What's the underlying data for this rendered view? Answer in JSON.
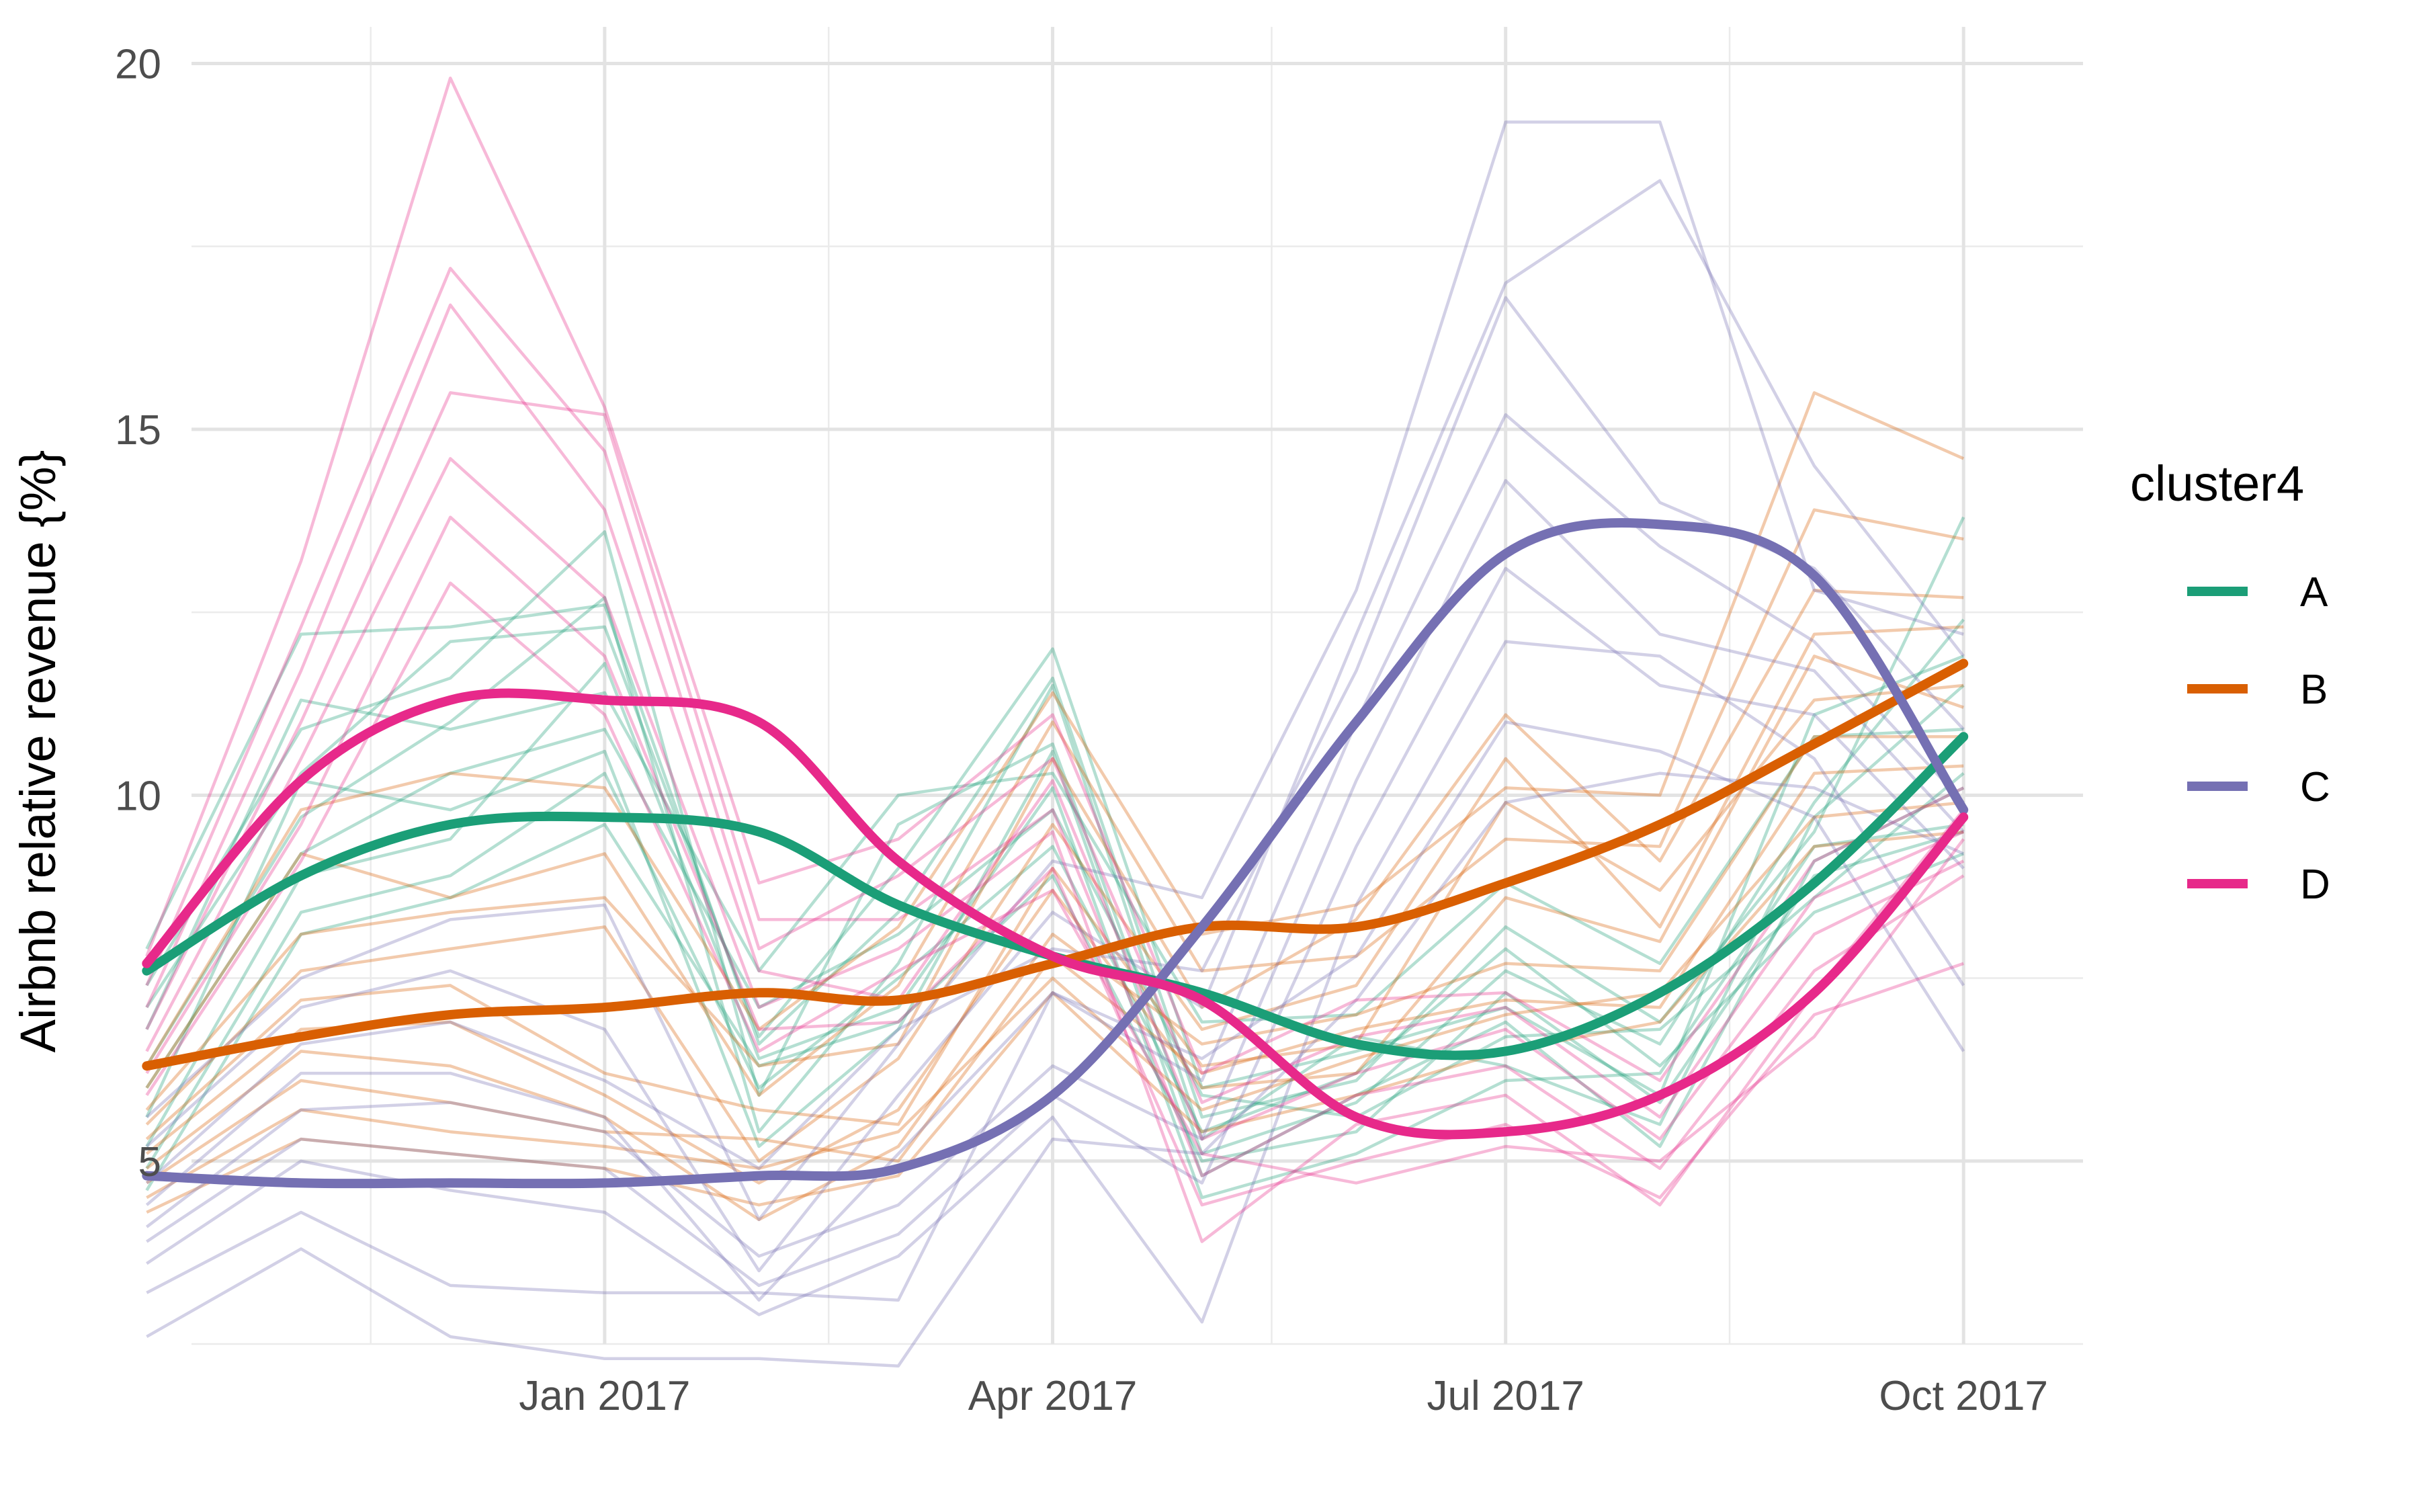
{
  "chart_data": {
    "type": "line",
    "title": "",
    "xlabel": "",
    "ylabel": "Airbnb relative revenue {%}",
    "x_axis": {
      "type": "date",
      "range": [
        "2016-10-10",
        "2017-10-25"
      ],
      "ticks": [
        "2017-01-01",
        "2017-04-01",
        "2017-07-01",
        "2017-10-01"
      ],
      "tick_labels": [
        "Jan 2017",
        "Apr 2017",
        "Jul 2017",
        "Oct 2017"
      ],
      "minor_gridlines": [
        "2016-11-15",
        "2017-02-15",
        "2017-05-15",
        "2017-08-15"
      ]
    },
    "y_axis": {
      "range": [
        2.5,
        20.5
      ],
      "ticks": [
        5,
        10,
        15,
        20
      ],
      "tick_labels": [
        "5",
        "10",
        "15",
        "20"
      ],
      "minor_gridlines": [
        2.5,
        7.5,
        12.5,
        17.5
      ]
    },
    "grid": true,
    "legend": {
      "title": "cluster4",
      "position": "right",
      "labels": [
        "A",
        "B",
        "C",
        "D"
      ]
    },
    "x": [
      "2016-10-01",
      "2016-11-01",
      "2016-12-01",
      "2017-01-01",
      "2017-02-01",
      "2017-03-01",
      "2017-04-01",
      "2017-05-01",
      "2017-06-01",
      "2017-07-01",
      "2017-08-01",
      "2017-09-01",
      "2017-10-01"
    ],
    "series": [
      {
        "name": "A",
        "color": "#1b9e77",
        "smooth": [
          7.6,
          8.9,
          9.6,
          9.7,
          9.5,
          8.5,
          7.8,
          7.3,
          6.6,
          6.5,
          7.3,
          8.8,
          10.8
        ],
        "members": [
          [
            7.9,
            12.2,
            12.3,
            12.6,
            6.6,
            8.4,
            11.6,
            5.6,
            6.1,
            8.2,
            6.9,
            9.5,
            13.8
          ],
          [
            7.4,
            10.9,
            11.6,
            13.6,
            5.9,
            9.6,
            10.7,
            5.1,
            5.8,
            7.6,
            6.6,
            9.9,
            12.4
          ],
          [
            7.1,
            10.3,
            12.1,
            12.3,
            6.7,
            9.0,
            12.0,
            6.0,
            6.5,
            7.1,
            5.9,
            11.1,
            11.9
          ],
          [
            6.8,
            11.3,
            10.9,
            11.4,
            7.6,
            10.0,
            10.3,
            6.9,
            7.0,
            8.8,
            7.7,
            10.8,
            10.9
          ],
          [
            6.3,
            9.7,
            11.0,
            12.7,
            5.4,
            7.7,
            11.5,
            5.3,
            6.7,
            6.3,
            5.5,
            9.7,
            11.5
          ],
          [
            6.0,
            9.2,
            10.3,
            10.9,
            7.1,
            8.1,
            9.8,
            5.9,
            5.6,
            6.7,
            6.8,
            8.6,
            10.3
          ],
          [
            5.6,
            10.2,
            9.8,
            10.6,
            5.2,
            6.8,
            10.6,
            4.8,
            5.9,
            6.9,
            5.2,
            9.1,
            10.1
          ],
          [
            5.2,
            8.9,
            9.4,
            11.8,
            6.4,
            7.1,
            10.1,
            4.5,
            5.1,
            6.1,
            6.2,
            9.3,
            9.6
          ],
          [
            4.9,
            8.4,
            8.9,
            10.3,
            6.0,
            7.5,
            9.3,
            5.4,
            6.2,
            7.9,
            6.3,
            8.4,
            9.2
          ],
          [
            4.6,
            8.1,
            8.6,
            9.6,
            6.3,
            6.9,
            8.9,
            5.0,
            5.4,
            7.3,
            5.8,
            8.9,
            9.5
          ]
        ]
      },
      {
        "name": "B",
        "color": "#d95f02",
        "smooth": [
          6.3,
          6.7,
          7.0,
          7.1,
          7.3,
          7.2,
          7.7,
          8.2,
          8.2,
          8.8,
          9.6,
          10.7,
          11.8
        ],
        "members": [
          [
            6.3,
            9.8,
            10.3,
            10.1,
            6.8,
            8.2,
            11.4,
            8.1,
            8.5,
            10.1,
            10.0,
            15.5,
            14.6
          ],
          [
            6.0,
            9.2,
            8.6,
            9.2,
            5.9,
            7.4,
            11.0,
            7.6,
            7.8,
            9.4,
            9.3,
            13.9,
            13.5
          ],
          [
            5.7,
            8.1,
            8.4,
            8.6,
            6.3,
            6.6,
            10.5,
            7.1,
            8.3,
            11.1,
            9.1,
            12.8,
            12.7
          ],
          [
            5.5,
            7.6,
            7.9,
            8.2,
            5.0,
            6.4,
            9.6,
            6.8,
            7.4,
            10.5,
            8.2,
            12.2,
            12.3
          ],
          [
            5.3,
            7.2,
            7.4,
            6.2,
            5.7,
            5.5,
            9.0,
            6.3,
            6.6,
            9.9,
            8.7,
            11.3,
            11.5
          ],
          [
            5.1,
            6.8,
            6.9,
            5.9,
            4.7,
            5.7,
            8.7,
            6.0,
            6.2,
            8.6,
            8.0,
            11.9,
            11.2
          ],
          [
            4.9,
            6.5,
            6.3,
            5.6,
            4.2,
            5.2,
            8.1,
            6.6,
            7.0,
            7.7,
            7.6,
            10.8,
            10.8
          ],
          [
            4.7,
            6.1,
            5.8,
            5.4,
            5.3,
            5.0,
            7.8,
            6.2,
            6.8,
            7.2,
            7.1,
            10.3,
            10.4
          ],
          [
            4.5,
            5.7,
            5.4,
            5.2,
            4.9,
            5.4,
            7.5,
            5.7,
            6.4,
            7.0,
            7.3,
            9.7,
            9.9
          ],
          [
            4.3,
            5.3,
            5.1,
            4.9,
            4.4,
            4.8,
            7.3,
            5.4,
            5.9,
            6.5,
            6.9,
            9.3,
            9.5
          ]
        ]
      },
      {
        "name": "C",
        "color": "#7570b3",
        "smooth": [
          4.8,
          4.7,
          4.7,
          4.7,
          4.8,
          4.9,
          5.9,
          8.2,
          11.0,
          13.3,
          13.7,
          13.0,
          9.8
        ],
        "members": [
          [
            5.6,
            7.5,
            8.3,
            8.5,
            4.2,
            6.6,
            9.1,
            8.6,
            12.8,
            19.2,
            19.2,
            12.8,
            12.2
          ],
          [
            5.2,
            7.1,
            7.6,
            6.8,
            3.5,
            5.9,
            8.4,
            7.1,
            12.2,
            17.0,
            18.4,
            14.5,
            11.9
          ],
          [
            4.7,
            6.6,
            6.9,
            6.1,
            4.9,
            6.8,
            7.9,
            7.6,
            11.7,
            16.8,
            14.0,
            13.1,
            10.9
          ],
          [
            4.4,
            6.2,
            6.2,
            5.6,
            3.1,
            5.1,
            7.3,
            6.1,
            11.0,
            15.2,
            13.4,
            12.1,
            9.9
          ],
          [
            4.1,
            5.7,
            5.8,
            5.4,
            3.7,
            4.4,
            6.3,
            5.3,
            10.2,
            14.3,
            12.2,
            11.7,
            9.5
          ],
          [
            3.9,
            5.3,
            5.1,
            4.9,
            3.3,
            4.0,
            5.9,
            4.7,
            9.3,
            13.1,
            11.5,
            11.1,
            9.0
          ],
          [
            3.6,
            5.0,
            4.6,
            4.3,
            2.9,
            3.7,
            5.6,
            2.8,
            8.5,
            12.1,
            11.9,
            10.5,
            7.4
          ],
          [
            3.2,
            4.3,
            3.3,
            3.2,
            3.2,
            3.1,
            7.3,
            6.4,
            7.8,
            11.0,
            10.6,
            9.7,
            6.5
          ],
          [
            2.6,
            3.8,
            2.6,
            2.3,
            2.3,
            2.2,
            5.3,
            5.1,
            7.2,
            9.9,
            10.3,
            10.1,
            9.2
          ]
        ]
      },
      {
        "name": "D",
        "color": "#e7298a",
        "smooth": [
          7.7,
          10.2,
          11.3,
          11.3,
          11.0,
          9.1,
          7.8,
          7.2,
          5.6,
          5.4,
          5.9,
          7.3,
          9.7
        ],
        "members": [
          [
            7.8,
            13.2,
            19.8,
            15.3,
            8.8,
            9.4,
            11.1,
            6.2,
            7.2,
            7.3,
            6.1,
            9.1,
            10.1
          ],
          [
            7.4,
            12.3,
            17.2,
            14.7,
            7.9,
            8.9,
            10.5,
            5.8,
            6.7,
            7.1,
            5.6,
            8.6,
            9.5
          ],
          [
            7.1,
            11.7,
            16.7,
            13.9,
            7.6,
            7.2,
            10.2,
            5.3,
            6.2,
            6.8,
            5.3,
            8.1,
            9.1
          ],
          [
            6.8,
            11.0,
            15.5,
            15.2,
            8.3,
            8.3,
            9.8,
            4.8,
            5.9,
            6.3,
            4.9,
            7.6,
            8.9
          ],
          [
            6.5,
            10.5,
            14.6,
            12.7,
            7.1,
            7.9,
            9.5,
            3.9,
            5.5,
            5.9,
            4.4,
            7.3,
            9.8
          ],
          [
            6.2,
            9.6,
            13.8,
            11.9,
            6.8,
            6.9,
            9.0,
            4.4,
            5.0,
            5.5,
            4.5,
            7.0,
            7.7
          ],
          [
            5.9,
            9.1,
            12.9,
            11.1,
            6.5,
            7.6,
            8.7,
            5.1,
            4.7,
            5.2,
            5.0,
            6.7,
            9.4
          ]
        ]
      }
    ]
  }
}
